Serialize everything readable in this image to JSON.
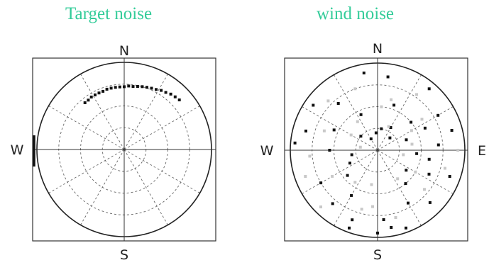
{
  "panels": [
    {
      "title": "Target noise",
      "compass": {
        "n": "N",
        "s": "S",
        "w": "W",
        "e": ""
      }
    },
    {
      "title": "wind noise",
      "compass": {
        "n": "N",
        "s": "S",
        "w": "W",
        "e": "E"
      }
    }
  ],
  "colors": {
    "title": "#33cc99",
    "grid": "#666666",
    "frame": "#333333",
    "dark_points": "#111111",
    "light_points": "#c8c8c8"
  },
  "chart_data": [
    {
      "type": "scatter",
      "projection": "polar",
      "title": "Target noise",
      "direction_labels": [
        "N",
        "S",
        "W"
      ],
      "grid": true,
      "rings": 3,
      "spokes_deg": [
        0,
        30,
        60,
        90,
        120,
        150,
        180,
        210,
        240,
        270,
        300,
        330
      ],
      "series": [
        {
          "color": "#111111",
          "azimuth_deg": [
            -40,
            -36,
            -32,
            -28,
            -24,
            -20,
            -16,
            -12,
            -8,
            -4,
            0,
            4,
            8,
            12,
            16,
            20,
            24,
            28,
            32,
            36,
            40,
            44,
            48
          ],
          "radius": [
            0.7,
            0.7,
            0.71,
            0.71,
            0.71,
            0.71,
            0.72,
            0.72,
            0.72,
            0.72,
            0.72,
            0.73,
            0.73,
            0.74,
            0.75,
            0.76,
            0.77,
            0.78,
            0.8,
            0.81,
            0.83,
            0.84,
            0.85
          ]
        }
      ]
    },
    {
      "type": "scatter",
      "projection": "polar",
      "title": "wind noise",
      "direction_labels": [
        "N",
        "S",
        "W",
        "E"
      ],
      "grid": true,
      "rings": 3,
      "spokes_deg": [
        0,
        30,
        60,
        90,
        120,
        150,
        180,
        210,
        240,
        270,
        300,
        330
      ],
      "series": [
        {
          "color": "#111111",
          "azimuth_deg": [
            -10,
            8,
            40,
            60,
            75,
            -55,
            -75,
            -85,
            100,
            115,
            135,
            160,
            170,
            180,
            -140,
            -160,
            -120,
            -100,
            20,
            -25,
            50,
            -40,
            70,
            -65,
            95,
            150,
            -150,
            30,
            -5,
            125,
            -115,
            85,
            -90,
            110,
            200,
            10,
            -30,
            45,
            -50,
            65,
            140,
            -130,
            175
          ],
          "radius": [
            0.9,
            0.85,
            0.92,
            0.8,
            0.88,
            0.9,
            0.85,
            0.95,
            0.6,
            0.65,
            0.85,
            0.95,
            0.9,
            0.95,
            0.8,
            0.95,
            0.75,
            0.3,
            0.55,
            0.45,
            0.5,
            0.7,
            0.35,
            0.55,
            0.45,
            0.7,
            0.6,
            0.3,
            0.2,
            0.4,
            0.35,
            0.7,
            0.55,
            0.88,
            0.85,
            0.25,
            0.15,
            0.2,
            0.25,
            0.6,
            0.5,
            0.45,
            0.8
          ]
        },
        {
          "color": "#c8c8c8",
          "azimuth_deg": [
            -20,
            15,
            35,
            55,
            -45,
            -70,
            90,
            105,
            130,
            165,
            -165,
            -135,
            -110,
            -95,
            25,
            -35,
            60,
            80,
            -60,
            145,
            -145,
            120,
            -120,
            5,
            185,
            190,
            100,
            -80
          ],
          "radius": [
            0.75,
            0.6,
            0.78,
            0.62,
            0.8,
            0.65,
            0.92,
            0.8,
            0.7,
            0.8,
            0.7,
            0.92,
            0.88,
            0.78,
            0.3,
            0.4,
            0.45,
            0.4,
            0.35,
            0.4,
            0.45,
            0.5,
            0.6,
            0.5,
            0.65,
            0.4,
            0.3,
            0.2
          ]
        }
      ]
    }
  ]
}
